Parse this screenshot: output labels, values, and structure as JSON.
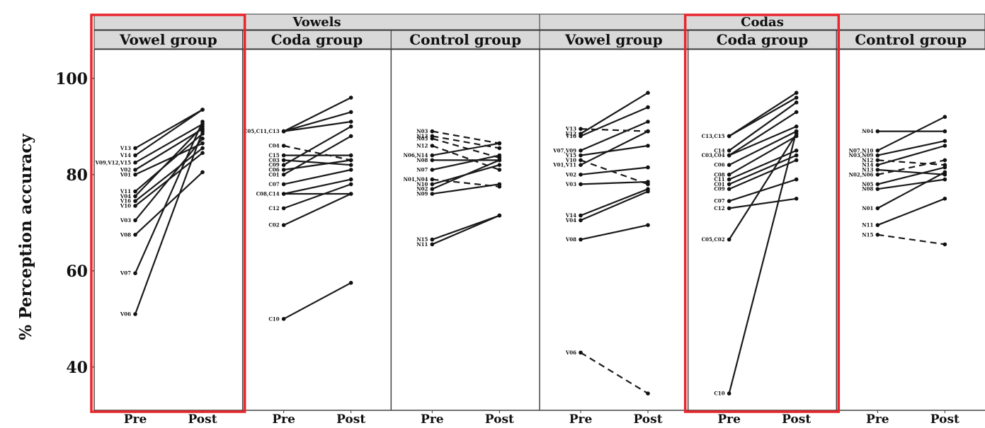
{
  "chart_data": {
    "type": "line",
    "ylabel": "% Perception accuracy",
    "ylim": [
      31,
      106
    ],
    "y_ticks": [
      40,
      60,
      80,
      100
    ],
    "x_categories": [
      "Pre",
      "Post"
    ],
    "outer_strips": [
      "Vowels",
      "Codas"
    ],
    "highlight_color": "#e8262c",
    "strip_color": "#d9d9d9",
    "panels": [
      {
        "outer": "Vowels",
        "strip": "Vowel group",
        "highlight": true,
        "series": [
          {
            "label": "V13",
            "pre": 85.5,
            "post": 93.5,
            "dashed": false
          },
          {
            "label": "V14",
            "pre": 84.0,
            "post": 93.5,
            "dashed": false
          },
          {
            "label": "V09,V12,V15",
            "pre": 82.5,
            "post": 90.5,
            "dashed": false
          },
          {
            "label": "V02",
            "pre": 81.0,
            "post": 89.5,
            "dashed": false
          },
          {
            "label": "V01",
            "pre": 80.0,
            "post": 86.5,
            "dashed": false
          },
          {
            "label": "V11",
            "pre": 76.5,
            "post": 88.5,
            "dashed": false
          },
          {
            "label": "V04",
            "pre": 75.5,
            "post": 90.0,
            "dashed": false
          },
          {
            "label": "V16",
            "pre": 74.5,
            "post": 85.5,
            "dashed": false
          },
          {
            "label": "V10",
            "pre": 73.5,
            "post": 84.5,
            "dashed": false
          },
          {
            "label": "V03",
            "pre": 70.5,
            "post": 87.5,
            "dashed": false
          },
          {
            "label": "V08",
            "pre": 67.5,
            "post": 80.5,
            "dashed": false
          },
          {
            "label": "V07",
            "pre": 59.5,
            "post": 91.0,
            "dashed": false
          },
          {
            "label": "V06",
            "pre": 51.0,
            "post": 89.0,
            "dashed": false
          }
        ]
      },
      {
        "outer": "Vowels",
        "strip": "Coda group",
        "highlight": false,
        "series": [
          {
            "label": "C05,C11,C13",
            "pre": 89.0,
            "post": 96.0,
            "dashed": false
          },
          {
            "label": "",
            "pre": 89.0,
            "post": 93.0,
            "dashed": false
          },
          {
            "label": "",
            "pre": 89.0,
            "post": 91.0,
            "dashed": false
          },
          {
            "label": "C04",
            "pre": 86.0,
            "post": 83.0,
            "dashed": true
          },
          {
            "label": "C15",
            "pre": 84.0,
            "post": 84.0,
            "dashed": false
          },
          {
            "label": "C03",
            "pre": 83.0,
            "post": 82.0,
            "dashed": false
          },
          {
            "label": "C09",
            "pre": 82.0,
            "post": 90.0,
            "dashed": false
          },
          {
            "label": "C06",
            "pre": 81.0,
            "post": 83.0,
            "dashed": false
          },
          {
            "label": "C01",
            "pre": 80.0,
            "post": 88.0,
            "dashed": false
          },
          {
            "label": "C07",
            "pre": 78.0,
            "post": 81.0,
            "dashed": false
          },
          {
            "label": "C08,C14",
            "pre": 76.0,
            "post": 79.0,
            "dashed": false
          },
          {
            "label": "",
            "pre": 76.0,
            "post": 76.0,
            "dashed": false
          },
          {
            "label": "C12",
            "pre": 73.0,
            "post": 78.0,
            "dashed": false
          },
          {
            "label": "C02",
            "pre": 69.5,
            "post": 76.0,
            "dashed": false
          },
          {
            "label": "C10",
            "pre": 50.0,
            "post": 57.5,
            "dashed": false
          }
        ]
      },
      {
        "outer": "Vowels",
        "strip": "Control group",
        "highlight": false,
        "series": [
          {
            "label": "N03",
            "pre": 89.0,
            "post": 86.5,
            "dashed": true
          },
          {
            "label": "N13",
            "pre": 88.0,
            "post": 85.5,
            "dashed": true
          },
          {
            "label": "N05",
            "pre": 87.5,
            "post": 83.5,
            "dashed": true
          },
          {
            "label": "N12",
            "pre": 86.0,
            "post": 81.0,
            "dashed": true
          },
          {
            "label": "N06,N14",
            "pre": 84.0,
            "post": 86.5,
            "dashed": false
          },
          {
            "label": "N08",
            "pre": 83.0,
            "post": 83.0,
            "dashed": false
          },
          {
            "label": "N07",
            "pre": 81.0,
            "post": 84.0,
            "dashed": false
          },
          {
            "label": "N01,N04",
            "pre": 79.0,
            "post": 77.5,
            "dashed": true
          },
          {
            "label": "N10",
            "pre": 78.0,
            "post": 82.0,
            "dashed": false
          },
          {
            "label": "N02",
            "pre": 77.0,
            "post": 83.0,
            "dashed": false
          },
          {
            "label": "N09",
            "pre": 76.0,
            "post": 78.0,
            "dashed": false
          },
          {
            "label": "N15",
            "pre": 66.5,
            "post": 71.5,
            "dashed": false
          },
          {
            "label": "N11",
            "pre": 65.5,
            "post": 71.5,
            "dashed": false
          }
        ]
      },
      {
        "outer": "Codas",
        "strip": "Vowel group",
        "highlight": false,
        "series": [
          {
            "label": "V13",
            "pre": 89.5,
            "post": 89.0,
            "dashed": true
          },
          {
            "label": "V12",
            "pre": 88.5,
            "post": 97.0,
            "dashed": false
          },
          {
            "label": "V16",
            "pre": 88.0,
            "post": 94.0,
            "dashed": false
          },
          {
            "label": "V07,V09",
            "pre": 85.0,
            "post": 91.0,
            "dashed": false
          },
          {
            "label": "V15",
            "pre": 84.0,
            "post": 86.0,
            "dashed": false
          },
          {
            "label": "V10",
            "pre": 83.0,
            "post": 78.0,
            "dashed": true
          },
          {
            "label": "V01,V11",
            "pre": 82.0,
            "post": 89.0,
            "dashed": false
          },
          {
            "label": "V02",
            "pre": 80.0,
            "post": 81.5,
            "dashed": false
          },
          {
            "label": "V03",
            "pre": 78.0,
            "post": 78.5,
            "dashed": false
          },
          {
            "label": "V14",
            "pre": 71.5,
            "post": 77.0,
            "dashed": false
          },
          {
            "label": "V04",
            "pre": 70.5,
            "post": 76.5,
            "dashed": false
          },
          {
            "label": "V08",
            "pre": 66.5,
            "post": 69.5,
            "dashed": false
          },
          {
            "label": "V06",
            "pre": 43.0,
            "post": 34.5,
            "dashed": true
          }
        ]
      },
      {
        "outer": "Codas",
        "strip": "Coda group",
        "highlight": true,
        "series": [
          {
            "label": "C13,C15",
            "pre": 88.0,
            "post": 97.0,
            "dashed": false
          },
          {
            "label": "",
            "pre": 88.0,
            "post": 96.0,
            "dashed": false
          },
          {
            "label": "C14",
            "pre": 85.0,
            "post": 95.0,
            "dashed": false
          },
          {
            "label": "C03,C04",
            "pre": 84.0,
            "post": 93.0,
            "dashed": false
          },
          {
            "label": "",
            "pre": 84.0,
            "post": 90.0,
            "dashed": false
          },
          {
            "label": "C06",
            "pre": 82.0,
            "post": 89.0,
            "dashed": false
          },
          {
            "label": "C08",
            "pre": 80.0,
            "post": 88.0,
            "dashed": false
          },
          {
            "label": "C11",
            "pre": 79.0,
            "post": 85.0,
            "dashed": false
          },
          {
            "label": "C01",
            "pre": 78.0,
            "post": 84.0,
            "dashed": false
          },
          {
            "label": "C09",
            "pre": 77.0,
            "post": 83.0,
            "dashed": false
          },
          {
            "label": "C07",
            "pre": 74.5,
            "post": 79.0,
            "dashed": false
          },
          {
            "label": "C12",
            "pre": 73.0,
            "post": 75.0,
            "dashed": false
          },
          {
            "label": "C05,C02",
            "pre": 66.5,
            "post": 88.5,
            "dashed": false
          },
          {
            "label": "C10",
            "pre": 34.5,
            "post": 89.0,
            "dashed": false
          }
        ]
      },
      {
        "outer": "Codas",
        "strip": "Control group",
        "highlight": false,
        "series": [
          {
            "label": "N04",
            "pre": 89.0,
            "post": 89.0,
            "dashed": false
          },
          {
            "label": "N07,N10",
            "pre": 85.0,
            "post": 92.0,
            "dashed": false
          },
          {
            "label": "N03,N09",
            "pre": 84.0,
            "post": 87.0,
            "dashed": false
          },
          {
            "label": "N12",
            "pre": 83.0,
            "post": 82.0,
            "dashed": true
          },
          {
            "label": "N14",
            "pre": 82.0,
            "post": 86.0,
            "dashed": false
          },
          {
            "label": "N13",
            "pre": 81.0,
            "post": 80.0,
            "dashed": false
          },
          {
            "label": "N02,N06",
            "pre": 80.0,
            "post": 83.0,
            "dashed": true
          },
          {
            "label": "N05",
            "pre": 78.0,
            "post": 81.5,
            "dashed": false
          },
          {
            "label": "N08",
            "pre": 77.0,
            "post": 79.0,
            "dashed": false
          },
          {
            "label": "N01",
            "pre": 73.0,
            "post": 80.5,
            "dashed": false
          },
          {
            "label": "N11",
            "pre": 69.5,
            "post": 75.0,
            "dashed": false
          },
          {
            "label": "N15",
            "pre": 67.5,
            "post": 65.5,
            "dashed": true
          }
        ]
      }
    ]
  }
}
